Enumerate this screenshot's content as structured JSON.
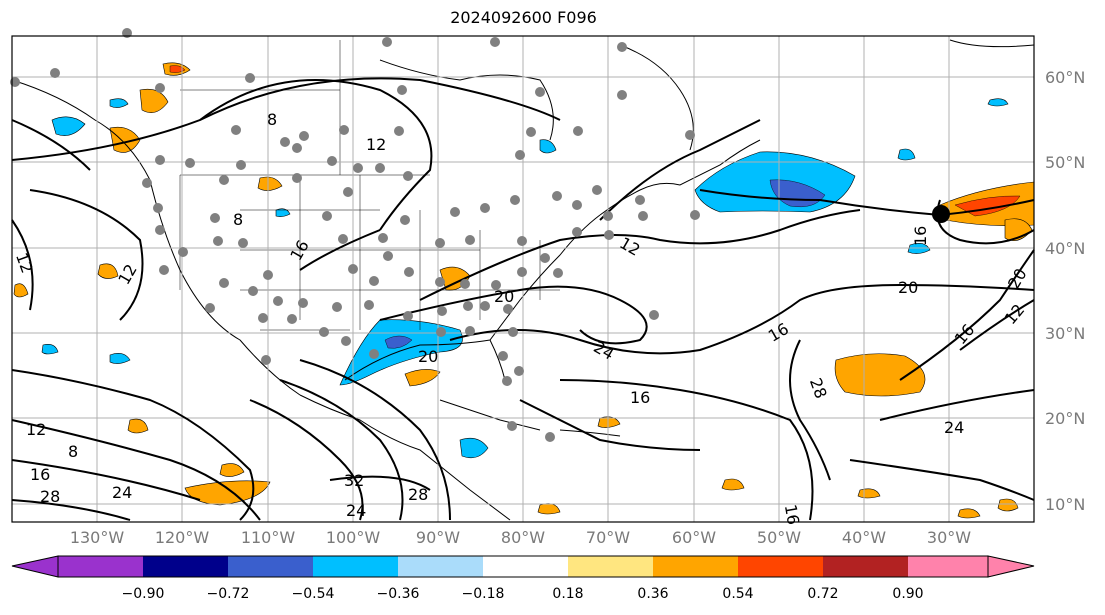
{
  "title": "2024092600 F096",
  "lat_labels": [
    "60°N",
    "50°N",
    "40°N",
    "30°N",
    "20°N",
    "10°N"
  ],
  "lon_labels": [
    "130°W",
    "120°W",
    "110°W",
    "100°W",
    "90°W",
    "80°W",
    "70°W",
    "60°W",
    "50°W",
    "40°W",
    "30°W"
  ],
  "contour_labels": [
    "8",
    "12",
    "8",
    "16",
    "12",
    "20",
    "12",
    "16",
    "20",
    "24",
    "16",
    "28",
    "24",
    "12",
    "8",
    "16",
    "28",
    "24",
    "32",
    "28",
    "24",
    "20",
    "16",
    "16",
    "20",
    "12",
    "16",
    "12"
  ],
  "colorbar": {
    "ticks": [
      "−0.90",
      "−0.72",
      "−0.54",
      "−0.36",
      "−0.18",
      "0.18",
      "0.36",
      "0.54",
      "0.72",
      "0.90"
    ],
    "colors": [
      "#9a32cd",
      "#00008b",
      "#3a5fcd",
      "#00bfff",
      "#aadcfa",
      "#ffffff",
      "#ffe680",
      "#ffa500",
      "#ff4500",
      "#b22222",
      "#ff82ab"
    ]
  },
  "colors": {
    "positive_shade": "#ffa500",
    "strong_positive_shade": "#ff4500",
    "negative_shade": "#00bfff",
    "strong_negative_shade": "#3a5fcd",
    "station_marker": "#808080",
    "contour": "#000000",
    "gridline": "#b0b0b0",
    "axis_label": "#7a7a7a"
  }
}
